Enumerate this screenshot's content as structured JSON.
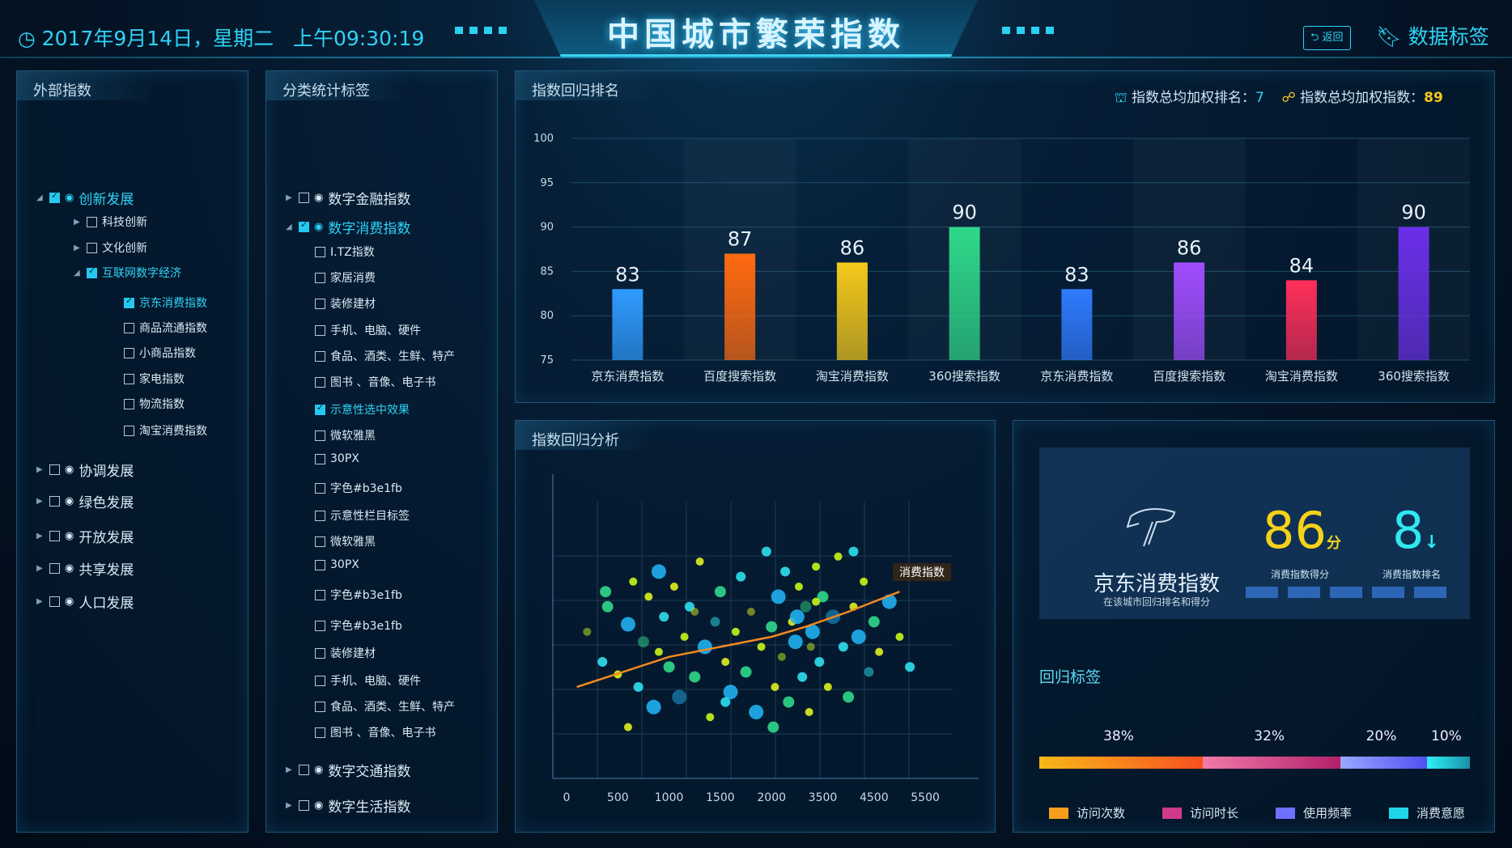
{
  "header": {
    "date": "2017年9月14日，星期二",
    "time": "上午09:30:19",
    "title": "中国城市繁荣指数",
    "back_label": "返回",
    "data_tag_label": "数据标签",
    "accent": "#2fd3f5"
  },
  "panel1": {
    "title": "外部指数",
    "items": [
      {
        "label": "创新发展",
        "level": 0,
        "checked": true,
        "expanded": true,
        "selected": true,
        "icon": "innovation-icon"
      },
      {
        "label": "科技创新",
        "level": 1,
        "checked": false,
        "expanded": false
      },
      {
        "label": "文化创新",
        "level": 1,
        "checked": false,
        "expanded": false
      },
      {
        "label": "互联网数字经济",
        "level": 1,
        "checked": true,
        "expanded": true,
        "selected": true
      },
      {
        "label": "京东消费指数",
        "level": 2,
        "checked": true,
        "selected": true
      },
      {
        "label": "商品流通指数",
        "level": 2,
        "checked": false
      },
      {
        "label": "小商品指数",
        "level": 2,
        "checked": false
      },
      {
        "label": "家电指数",
        "level": 2,
        "checked": false
      },
      {
        "label": "物流指数",
        "level": 2,
        "checked": false
      },
      {
        "label": "淘宝消费指数",
        "level": 2,
        "checked": false
      },
      {
        "label": "协调发展",
        "level": 0,
        "checked": false,
        "expanded": false,
        "icon": "gear-icon"
      },
      {
        "label": "绿色发展",
        "level": 0,
        "checked": false,
        "expanded": false,
        "icon": "leaf-icon"
      },
      {
        "label": "开放发展",
        "level": 0,
        "checked": false,
        "expanded": false,
        "icon": "people-icon"
      },
      {
        "label": "共享发展",
        "level": 0,
        "checked": false,
        "expanded": false,
        "icon": "share-icon"
      },
      {
        "label": "人口发展",
        "level": 0,
        "checked": false,
        "expanded": false,
        "icon": "users-icon"
      }
    ]
  },
  "panel2": {
    "title": "分类统计标签",
    "items": [
      {
        "label": "数字金融指数",
        "level": 0,
        "checked": false,
        "expanded": false,
        "icon": "money-bag-icon"
      },
      {
        "label": "数字消费指数",
        "level": 0,
        "checked": true,
        "expanded": true,
        "selected": true,
        "icon": "wallet-icon"
      },
      {
        "label": "I.TZ指数",
        "level": 1,
        "checked": false
      },
      {
        "label": "家居消费",
        "level": 1,
        "checked": false
      },
      {
        "label": "装修建材",
        "level": 1,
        "checked": false
      },
      {
        "label": "手机、电脑、硬件",
        "level": 1,
        "checked": false
      },
      {
        "label": "食品、酒类、生鲜、特产",
        "level": 1,
        "checked": false
      },
      {
        "label": "图书 、音像、电子书",
        "level": 1,
        "checked": false
      },
      {
        "label": "示意性选中效果",
        "level": 1,
        "checked": true,
        "selected": true
      },
      {
        "label": "微软雅黑",
        "level": 1,
        "checked": false
      },
      {
        "label": "30PX",
        "level": 1,
        "checked": false
      },
      {
        "label": "字色#b3e1fb",
        "level": 1,
        "checked": false
      },
      {
        "label": "示意性栏目标签",
        "level": 1,
        "checked": false
      },
      {
        "label": "微软雅黑",
        "level": 1,
        "checked": false
      },
      {
        "label": "30PX",
        "level": 1,
        "checked": false
      },
      {
        "label": "字色#b3e1fb",
        "level": 1,
        "checked": false
      },
      {
        "label": "字色#b3e1fb",
        "level": 1,
        "checked": false
      },
      {
        "label": "装修建材",
        "level": 1,
        "checked": false
      },
      {
        "label": "手机、电脑、硬件",
        "level": 1,
        "checked": false
      },
      {
        "label": "食品、酒类、生鲜、特产",
        "level": 1,
        "checked": false
      },
      {
        "label": "图书 、音像、电子书",
        "level": 1,
        "checked": false
      },
      {
        "label": "数字交通指数",
        "level": 0,
        "checked": false,
        "expanded": false,
        "icon": "bus-icon"
      },
      {
        "label": "数字生活指数",
        "level": 0,
        "checked": false,
        "expanded": false,
        "icon": "cup-icon"
      }
    ]
  },
  "ranking": {
    "title": "指数回归排名",
    "rank_label": "指数总均加权排名：",
    "rank_value": "7",
    "score_label": "指数总均加权指数：",
    "score_value": "89"
  },
  "scatter": {
    "title": "指数回归分析",
    "tooltip": "消费指数"
  },
  "info": {
    "name": "京东消费指数",
    "subtitle": "在该城市回归排名和得分",
    "score": "86",
    "score_unit": "分",
    "score_label": "消费指数得分",
    "rank": "8",
    "rank_label": "消费指数排名",
    "rank_trend": "down",
    "tag_title": "回归标签"
  },
  "chart_data": [
    {
      "type": "bar",
      "categories": [
        "京东消费指数",
        "百度搜索指数",
        "淘宝消费指数",
        "360搜索指数",
        "京东消费指数",
        "百度搜索指数",
        "淘宝消费指数",
        "360搜索指数"
      ],
      "values": [
        83,
        87,
        86,
        90,
        83,
        86,
        84,
        90
      ],
      "ylim": [
        75,
        100
      ],
      "yticks": [
        75,
        80,
        85,
        90,
        95,
        100
      ],
      "colors": [
        "#2f9bff",
        "#ff6a10",
        "#f5c91a",
        "#2fd889",
        "#2f7bff",
        "#a24dff",
        "#ff2f5a",
        "#6a2fe8"
      ],
      "grid": true
    },
    {
      "type": "scatter",
      "xticks": [
        0,
        500,
        1000,
        1500,
        2000,
        3500,
        4500,
        5500
      ],
      "grid": true,
      "points": [
        [
          200,
          52
        ],
        [
          350,
          40
        ],
        [
          400,
          62
        ],
        [
          500,
          35
        ],
        [
          600,
          55
        ],
        [
          650,
          72
        ],
        [
          700,
          30
        ],
        [
          750,
          48
        ],
        [
          800,
          66
        ],
        [
          850,
          22
        ],
        [
          900,
          44
        ],
        [
          950,
          58
        ],
        [
          1000,
          38
        ],
        [
          1050,
          70
        ],
        [
          1100,
          26
        ],
        [
          1150,
          50
        ],
        [
          1200,
          62
        ],
        [
          1250,
          34
        ],
        [
          1300,
          80
        ],
        [
          1350,
          46
        ],
        [
          1400,
          18
        ],
        [
          1450,
          56
        ],
        [
          1500,
          68
        ],
        [
          1550,
          40
        ],
        [
          1600,
          28
        ],
        [
          1650,
          52
        ],
        [
          1700,
          74
        ],
        [
          1750,
          36
        ],
        [
          1800,
          60
        ],
        [
          1850,
          20
        ],
        [
          1900,
          46
        ],
        [
          1950,
          84
        ],
        [
          2000,
          54
        ],
        [
          2100,
          30
        ],
        [
          2200,
          66
        ],
        [
          2300,
          42
        ],
        [
          2400,
          76
        ],
        [
          2500,
          24
        ],
        [
          2600,
          56
        ],
        [
          2700,
          48
        ],
        [
          2800,
          70
        ],
        [
          2900,
          34
        ],
        [
          3000,
          62
        ],
        [
          3100,
          20
        ],
        [
          3200,
          52
        ],
        [
          3300,
          78
        ],
        [
          3400,
          40
        ],
        [
          3500,
          66
        ],
        [
          3600,
          30
        ],
        [
          3700,
          58
        ],
        [
          3800,
          82
        ],
        [
          3900,
          46
        ],
        [
          4000,
          26
        ],
        [
          4100,
          62
        ],
        [
          4200,
          50
        ],
        [
          4300,
          72
        ],
        [
          4400,
          36
        ],
        [
          4500,
          56
        ],
        [
          4600,
          44
        ],
        [
          4800,
          64
        ],
        [
          5000,
          50
        ],
        [
          5200,
          38
        ],
        [
          380,
          68
        ],
        [
          1250,
          60
        ],
        [
          2750,
          58
        ],
        [
          3300,
          64
        ],
        [
          1550,
          24
        ],
        [
          2050,
          14
        ],
        [
          600,
          14
        ],
        [
          900,
          76
        ],
        [
          3150,
          46
        ],
        [
          4100,
          84
        ]
      ],
      "trend": [
        [
          100,
          30
        ],
        [
          1000,
          42
        ],
        [
          2000,
          50
        ],
        [
          3000,
          54
        ],
        [
          4000,
          60
        ],
        [
          5000,
          68
        ]
      ],
      "tooltip": "消费指数"
    },
    {
      "type": "stacked-bar",
      "series": [
        {
          "name": "访问次数",
          "value": 38,
          "color": "#f59e1a"
        },
        {
          "name": "访问时长",
          "value": 32,
          "color": "#d03a8a"
        },
        {
          "name": "使用频率",
          "value": 20,
          "color": "#7070ff"
        },
        {
          "name": "消费意愿",
          "value": 10,
          "color": "#1fd6e8"
        }
      ]
    }
  ]
}
